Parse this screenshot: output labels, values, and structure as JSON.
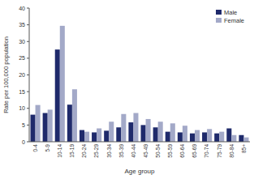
{
  "chart_data": {
    "type": "bar",
    "x_label": "Age group",
    "y_label": "Rate per 100,000 population",
    "categories": [
      "0-4",
      "5-9",
      "10-14",
      "15-19",
      "20-24",
      "25-29",
      "30-34",
      "35-39",
      "40-44",
      "45-49",
      "50-54",
      "55-59",
      "60-64",
      "65-69",
      "70-74",
      "75-79",
      "80-84",
      "85+"
    ],
    "series": [
      {
        "name": "Male",
        "color": "#1f2a6b",
        "values": [
          8.1,
          8.6,
          27.6,
          11.1,
          3.5,
          2.8,
          3.3,
          4.3,
          5.8,
          5,
          4.3,
          3,
          2.8,
          2.5,
          2.8,
          2.5,
          4,
          2
        ]
      },
      {
        "name": "Female",
        "color": "#a3a9c8",
        "values": [
          11,
          9.6,
          34.7,
          15.7,
          3,
          4,
          6,
          8.3,
          8.6,
          6.8,
          6,
          5.5,
          4.8,
          3.5,
          3.8,
          3,
          2,
          1.3
        ]
      }
    ],
    "ylim": [
      0,
      40
    ],
    "yticks": [
      0,
      5,
      10,
      15,
      20,
      25,
      30,
      35,
      40
    ],
    "grid": false,
    "legend": "top-right"
  }
}
